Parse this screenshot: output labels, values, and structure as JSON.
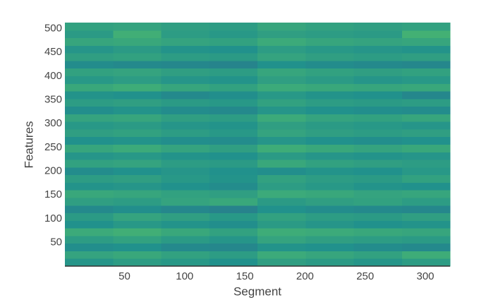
{
  "chart_data": {
    "type": "heatmap",
    "xlabel": "Segment",
    "ylabel": "Features",
    "xlim": [
      0.5,
      320.5
    ],
    "ylim": [
      0.5,
      512.5
    ],
    "xticks": [
      50,
      100,
      150,
      200,
      250,
      300
    ],
    "yticks": [
      50,
      100,
      150,
      200,
      250,
      300,
      350,
      400,
      450,
      500
    ],
    "colorscale": [
      "#440154",
      "#3b528b",
      "#21918c",
      "#5ec962",
      "#fde725"
    ],
    "x": [
      20.5,
      60.5,
      100.5,
      140.5,
      180.5,
      220.5,
      260.5,
      300.5
    ],
    "y": [
      8.5,
      24.5,
      40.5,
      56.5,
      72.5,
      88.5,
      104.5,
      120.5,
      136.5,
      152.5,
      168.5,
      184.5,
      200.5,
      216.5,
      232.5,
      248.5,
      264.5,
      280.5,
      296.5,
      312.5,
      328.5,
      344.5,
      360.5,
      376.5,
      392.5,
      408.5,
      424.5,
      440.5,
      456.5,
      472.5,
      488.5,
      504.5
    ],
    "z": [
      [
        0.52,
        0.55,
        0.53,
        0.5,
        0.56,
        0.54,
        0.52,
        0.55
      ],
      [
        0.58,
        0.6,
        0.57,
        0.55,
        0.61,
        0.59,
        0.57,
        0.62
      ],
      [
        0.49,
        0.5,
        0.47,
        0.46,
        0.51,
        0.5,
        0.48,
        0.47
      ],
      [
        0.55,
        0.57,
        0.54,
        0.52,
        0.58,
        0.56,
        0.55,
        0.54
      ],
      [
        0.61,
        0.63,
        0.6,
        0.57,
        0.62,
        0.61,
        0.6,
        0.59
      ],
      [
        0.5,
        0.53,
        0.51,
        0.49,
        0.54,
        0.52,
        0.5,
        0.51
      ],
      [
        0.54,
        0.58,
        0.56,
        0.53,
        0.57,
        0.55,
        0.54,
        0.56
      ],
      [
        0.47,
        0.49,
        0.46,
        0.44,
        0.5,
        0.48,
        0.47,
        0.46
      ],
      [
        0.56,
        0.55,
        0.58,
        0.6,
        0.54,
        0.56,
        0.57,
        0.55
      ],
      [
        0.6,
        0.59,
        0.57,
        0.56,
        0.61,
        0.6,
        0.58,
        0.59
      ],
      [
        0.51,
        0.52,
        0.5,
        0.48,
        0.55,
        0.53,
        0.51,
        0.5
      ],
      [
        0.55,
        0.56,
        0.53,
        0.51,
        0.57,
        0.55,
        0.54,
        0.57
      ],
      [
        0.48,
        0.5,
        0.52,
        0.5,
        0.49,
        0.51,
        0.5,
        0.53
      ],
      [
        0.57,
        0.58,
        0.55,
        0.54,
        0.6,
        0.57,
        0.56,
        0.55
      ],
      [
        0.52,
        0.53,
        0.51,
        0.5,
        0.54,
        0.52,
        0.51,
        0.52
      ],
      [
        0.59,
        0.61,
        0.58,
        0.56,
        0.62,
        0.6,
        0.58,
        0.6
      ],
      [
        0.5,
        0.51,
        0.49,
        0.48,
        0.52,
        0.5,
        0.49,
        0.5
      ],
      [
        0.56,
        0.57,
        0.55,
        0.53,
        0.58,
        0.56,
        0.55,
        0.56
      ],
      [
        0.53,
        0.54,
        0.52,
        0.51,
        0.56,
        0.54,
        0.53,
        0.52
      ],
      [
        0.58,
        0.59,
        0.56,
        0.55,
        0.61,
        0.58,
        0.57,
        0.59
      ],
      [
        0.49,
        0.51,
        0.48,
        0.47,
        0.52,
        0.5,
        0.49,
        0.48
      ],
      [
        0.55,
        0.56,
        0.54,
        0.53,
        0.57,
        0.55,
        0.54,
        0.55
      ],
      [
        0.51,
        0.5,
        0.47,
        0.49,
        0.53,
        0.51,
        0.5,
        0.46
      ],
      [
        0.6,
        0.62,
        0.59,
        0.57,
        0.61,
        0.6,
        0.59,
        0.6
      ],
      [
        0.53,
        0.55,
        0.52,
        0.51,
        0.56,
        0.54,
        0.52,
        0.53
      ],
      [
        0.57,
        0.58,
        0.56,
        0.55,
        0.59,
        0.57,
        0.56,
        0.57
      ],
      [
        0.48,
        0.47,
        0.46,
        0.45,
        0.5,
        0.48,
        0.47,
        0.46
      ],
      [
        0.56,
        0.57,
        0.55,
        0.54,
        0.58,
        0.56,
        0.55,
        0.56
      ],
      [
        0.52,
        0.54,
        0.51,
        0.5,
        0.55,
        0.53,
        0.52,
        0.51
      ],
      [
        0.59,
        0.6,
        0.58,
        0.57,
        0.61,
        0.59,
        0.58,
        0.59
      ],
      [
        0.54,
        0.63,
        0.55,
        0.53,
        0.56,
        0.55,
        0.54,
        0.64
      ],
      [
        0.57,
        0.58,
        0.56,
        0.55,
        0.59,
        0.57,
        0.56,
        0.57
      ]
    ]
  }
}
